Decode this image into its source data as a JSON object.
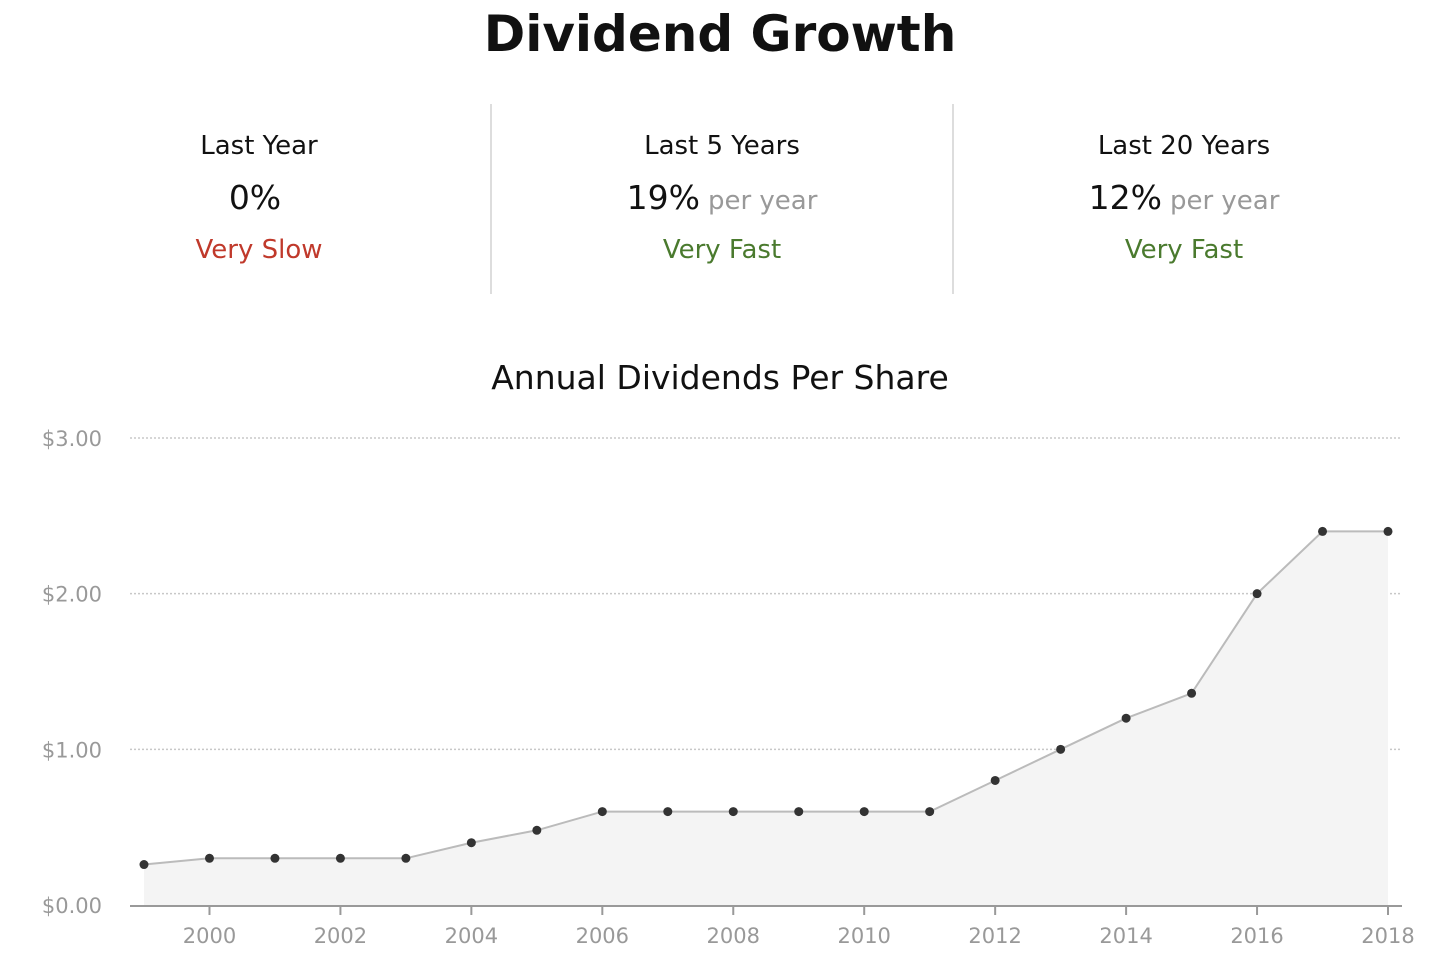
{
  "title": "Dividend Growth",
  "stats": [
    {
      "label": "Last Year",
      "value": "0%",
      "unit": "",
      "rating": "Very Slow",
      "rating_color": "#c0392b"
    },
    {
      "label": "Last 5 Years",
      "value": "19%",
      "unit": "per year",
      "rating": "Very Fast",
      "rating_color": "#4a7a2e"
    },
    {
      "label": "Last 20 Years",
      "value": "12%",
      "unit": "per year",
      "rating": "Very Fast",
      "rating_color": "#4a7a2e"
    }
  ],
  "chart_data": {
    "type": "area",
    "title": "Annual Dividends Per Share",
    "xlabel": "",
    "ylabel": "",
    "x": [
      1999,
      2000,
      2001,
      2002,
      2003,
      2004,
      2005,
      2006,
      2007,
      2008,
      2009,
      2010,
      2011,
      2012,
      2013,
      2014,
      2015,
      2016,
      2017,
      2018
    ],
    "series": [
      {
        "values": [
          0.26,
          0.3,
          0.3,
          0.3,
          0.3,
          0.4,
          0.48,
          0.6,
          0.6,
          0.6,
          0.6,
          0.6,
          0.6,
          0.8,
          1.0,
          1.2,
          1.36,
          2.0,
          2.4,
          2.4
        ]
      }
    ],
    "x_ticks": [
      "2000",
      "2002",
      "2004",
      "2006",
      "2008",
      "2010",
      "2012",
      "2014",
      "2016",
      "2018"
    ],
    "y_ticks": [
      "$0.00",
      "$1.00",
      "$2.00",
      "$3.00"
    ],
    "ylim": [
      0,
      3
    ],
    "xlim": [
      1999,
      2018
    ],
    "grid": true,
    "legend": "none",
    "colors": {
      "line": "#bbbbbb",
      "fill": "#f4f4f4",
      "point": "#333333",
      "grid": "#c8c8c8",
      "axis": "#999999"
    }
  }
}
